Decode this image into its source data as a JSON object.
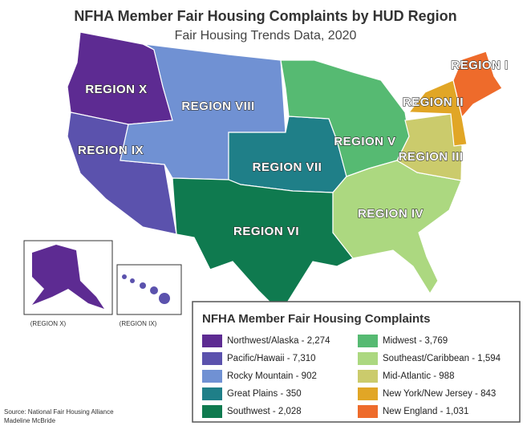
{
  "title": "NFHA Member Fair Housing Complaints by HUD Region",
  "subtitle": "Fair Housing Trends Data, 2020",
  "regions": [
    {
      "label": "REGION X",
      "color": "#5d2b92",
      "legend": "Northwest/Alaska - 2,274"
    },
    {
      "label": "REGION IX",
      "color": "#5b52ad",
      "legend": "Pacific/Hawaii - 7,310"
    },
    {
      "label": "REGION VIII",
      "color": "#7091d3",
      "legend": "Rocky Mountain - 902"
    },
    {
      "label": "REGION VII",
      "color": "#1f7f88",
      "legend": "Great Plains - 350"
    },
    {
      "label": "REGION VI",
      "color": "#0f7a4f",
      "legend": "Southwest -  2,028"
    },
    {
      "label": "REGION V",
      "color": "#56ba72",
      "legend": "Midwest - 3,769"
    },
    {
      "label": "REGION IV",
      "color": "#acd880",
      "legend": "Southeast/Caribbean - 1,594"
    },
    {
      "label": "REGION III",
      "color": "#cbcb6c",
      "legend": "Mid-Atlantic - 988"
    },
    {
      "label": "REGION II",
      "color": "#e1a626",
      "legend": "New York/New Jersey - 843"
    },
    {
      "label": "REGION I",
      "color": "#ee6b2b",
      "legend": "New England - 1,031"
    }
  ],
  "insets": [
    "(REGION X)",
    "(REGION IX)"
  ],
  "legend_title": "NFHA Member Fair Housing Complaints",
  "source": [
    "Source: National Fair Housing Alliance",
    "Madeline McBride"
  ]
}
